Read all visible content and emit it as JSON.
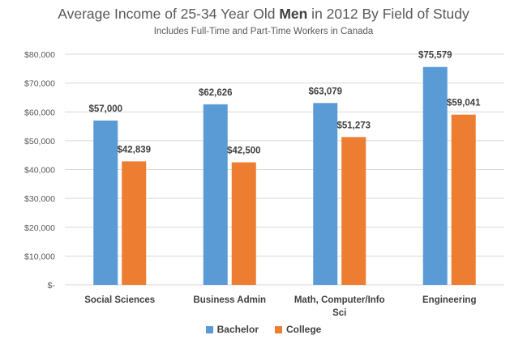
{
  "chart_data": {
    "type": "bar",
    "title_prefix": "Average Income of 25-34 Year Old ",
    "title_bold": "Men",
    "title_suffix": " in 2012 By Field of Study",
    "subtitle": "Includes Full-Time and Part-Time Workers in Canada",
    "categories": [
      [
        "Social Sciences"
      ],
      [
        "Business Admin"
      ],
      [
        "Math, Computer/Info",
        "Sci"
      ],
      [
        "Engineering"
      ]
    ],
    "series": [
      {
        "name": "Bachelor",
        "color": "#5B9BD5",
        "values": [
          57000,
          62626,
          63079,
          75579
        ],
        "labels": [
          "$57,000",
          "$62,626",
          "$63,079",
          "$75,579"
        ]
      },
      {
        "name": "College",
        "color": "#ED7D31",
        "values": [
          42839,
          42500,
          51273,
          59041
        ],
        "labels": [
          "$42,839",
          "$42,500",
          "$51,273",
          "$59,041"
        ]
      }
    ],
    "ylim": [
      0,
      80000
    ],
    "yticks": [
      0,
      10000,
      20000,
      30000,
      40000,
      50000,
      60000,
      70000,
      80000
    ],
    "ytick_labels": [
      "$-",
      "$10,000",
      "$20,000",
      "$30,000",
      "$40,000",
      "$50,000",
      "$60,000",
      "$70,000",
      "$80,000"
    ],
    "grid": true,
    "legend_position": "bottom"
  }
}
